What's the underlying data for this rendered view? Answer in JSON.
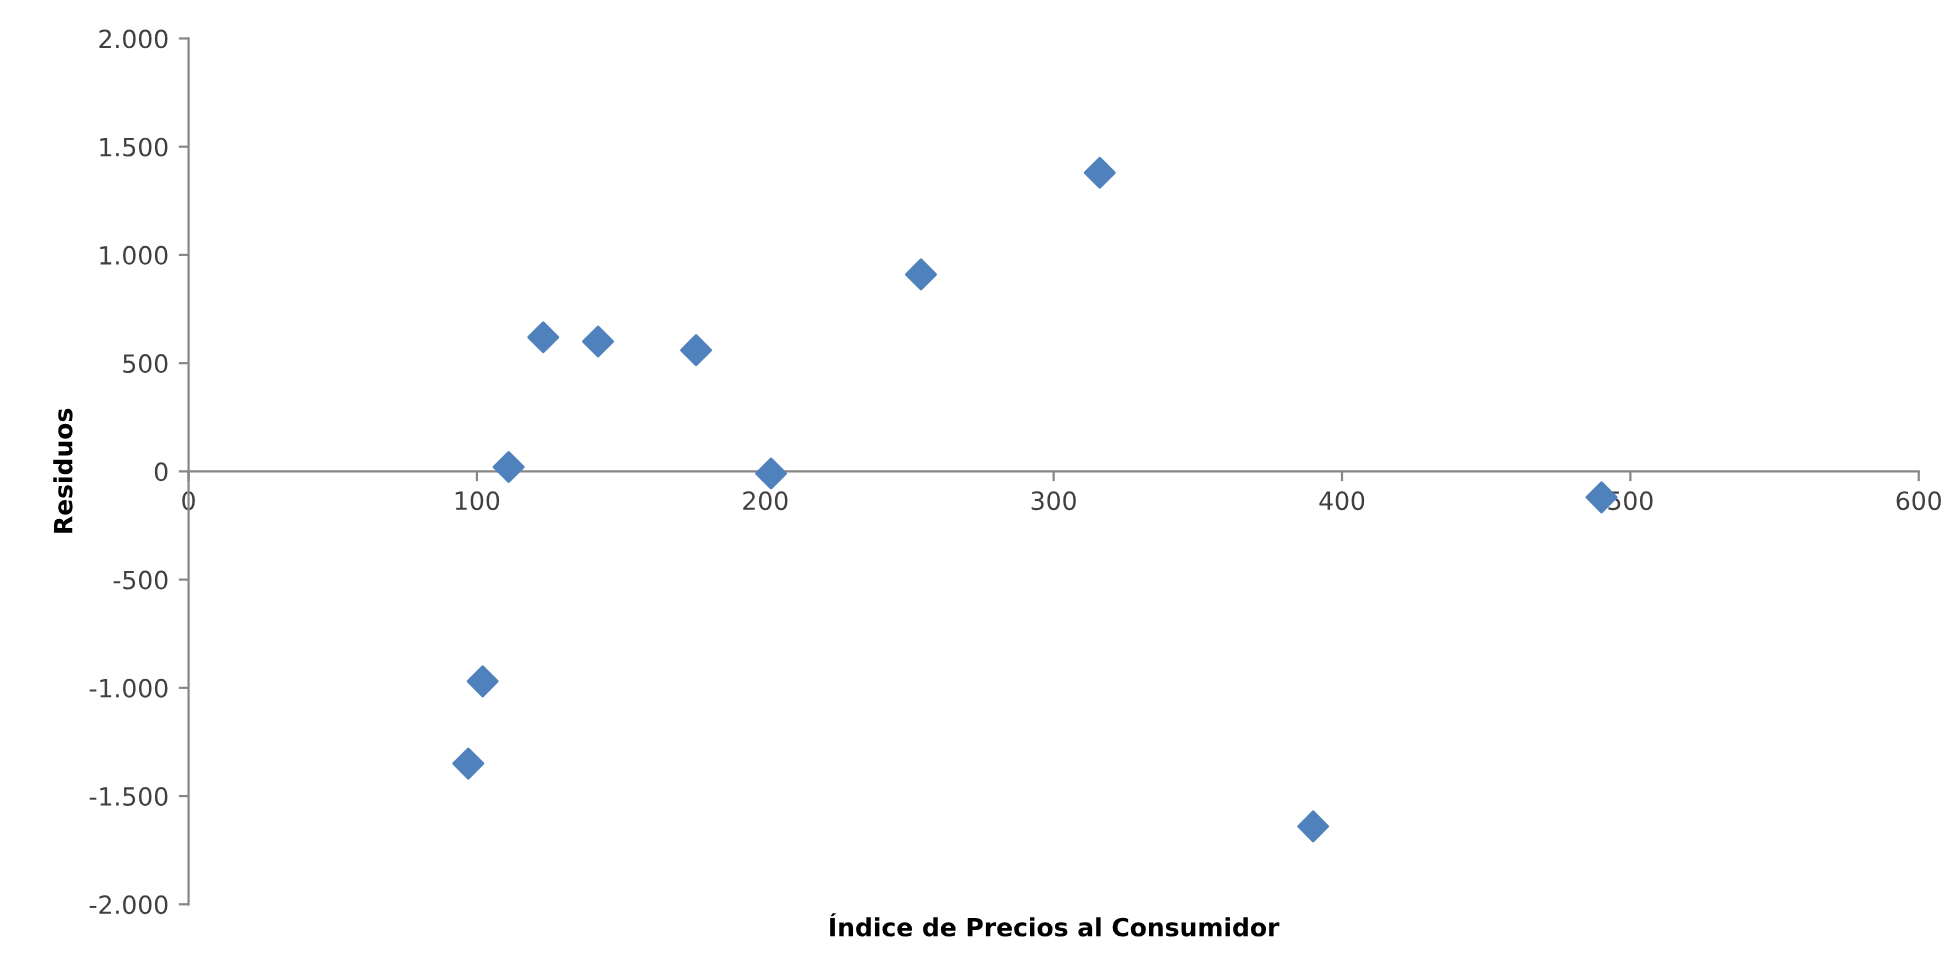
{
  "chart_data": {
    "type": "scatter",
    "xlabel": "Índice de Precios al Consumidor",
    "ylabel": "Residuos",
    "x": [
      97,
      102,
      111,
      123,
      142,
      176,
      202,
      254,
      316,
      390,
      490
    ],
    "series": [
      {
        "color": "#4f81bd",
        "values": [
          -1350,
          -970,
          20,
          620,
          600,
          560,
          -10,
          910,
          1380,
          -1640,
          -120
        ]
      }
    ],
    "marker": "diamond",
    "grid": false,
    "legend": false,
    "xlim": [
      0,
      600
    ],
    "xticks": [
      0,
      100,
      200,
      300,
      400,
      500,
      600
    ],
    "ylim": [
      -2000,
      2000
    ],
    "yticks": [
      {
        "value": -2000,
        "label": "-2.000"
      },
      {
        "value": -1500,
        "label": "-1.500"
      },
      {
        "value": -1000,
        "label": "-1.000"
      },
      {
        "value": -500,
        "label": "-500"
      },
      {
        "value": 0,
        "label": "0"
      },
      {
        "value": 500,
        "label": "500"
      },
      {
        "value": 1000,
        "label": "1.000"
      },
      {
        "value": 1500,
        "label": "1.500"
      },
      {
        "value": 2000,
        "label": "2.000"
      }
    ]
  }
}
